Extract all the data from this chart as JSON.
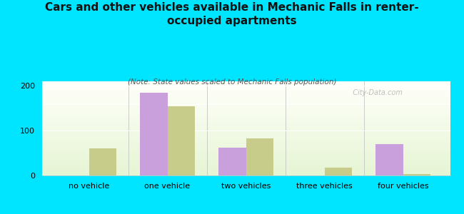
{
  "title": "Cars and other vehicles available in Mechanic Falls in renter-\noccupied apartments",
  "subtitle": "(Note: State values scaled to Mechanic Falls population)",
  "categories": [
    "no vehicle",
    "one vehicle",
    "two vehicles",
    "three vehicles",
    "four vehicles"
  ],
  "mechanic_falls": [
    0,
    185,
    62,
    0,
    70
  ],
  "maine": [
    60,
    155,
    82,
    18,
    3
  ],
  "bar_color_mf": "#c9a0dc",
  "bar_color_maine": "#c8cc8a",
  "bg_color": "#00e5ff",
  "title_fontsize": 11,
  "subtitle_fontsize": 7.5,
  "tick_fontsize": 8,
  "legend_fontsize": 9,
  "ylim": [
    0,
    210
  ],
  "yticks": [
    0,
    100,
    200
  ],
  "bar_width": 0.35,
  "watermark": "  City-Data.com"
}
